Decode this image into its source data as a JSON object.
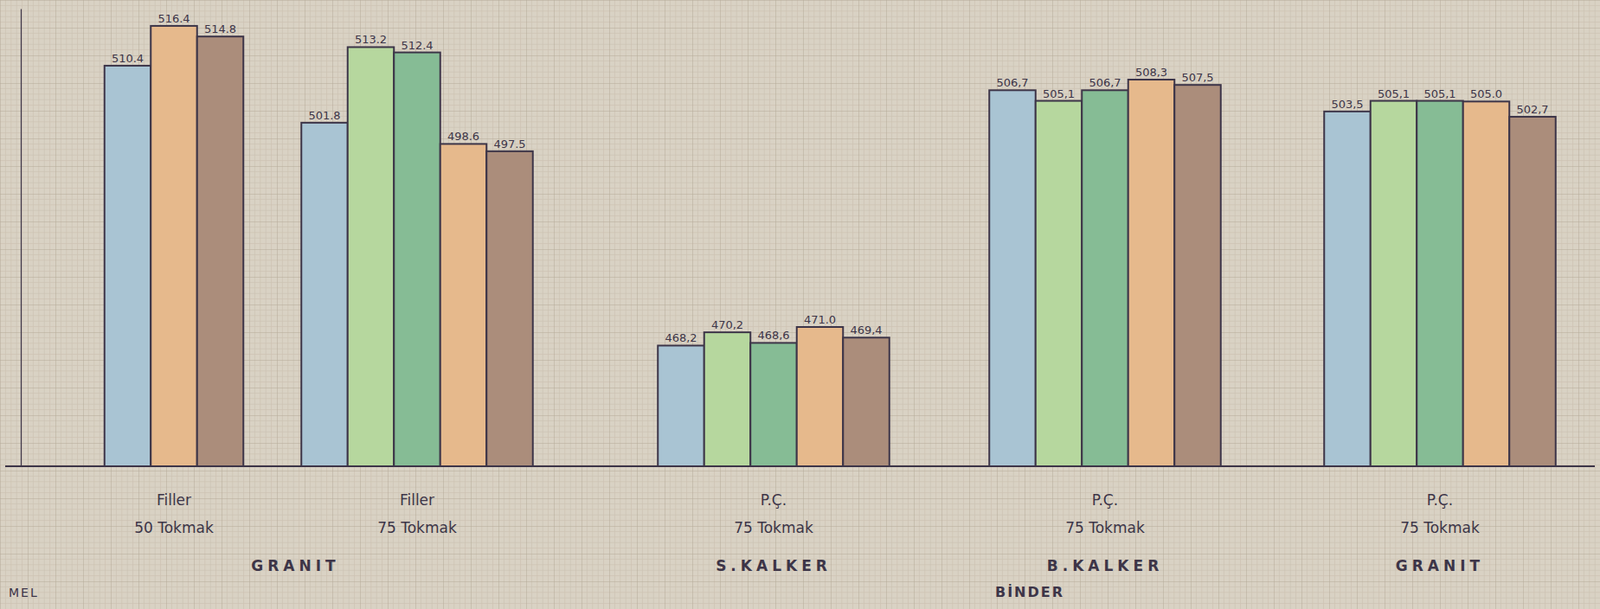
{
  "chart_data": {
    "type": "bar",
    "categories": [
      "Filler 50 Tokmak",
      "Filler 75 Tokmak",
      "P.Ç. 75 Tokmak",
      "P.Ç. 75 Tokmak",
      "P.Ç. 75 Tokmak"
    ],
    "group_labels": [
      "GRANIT",
      "GRANIT",
      "S.KALKER",
      "B.KALKER",
      "GRANIT"
    ],
    "annotations": [
      "MEL",
      "BİNDER"
    ],
    "ylim": [
      450,
      519
    ],
    "yticks": [],
    "tick_labels": "x",
    "data_labels": true,
    "series": [
      {
        "color": "#a9c4d3",
        "values": [
          510.4,
          501.8,
          468.2,
          506.7,
          503.5
        ],
        "value_labels": [
          "510.4",
          "501.8",
          "468,2",
          "506,7",
          "503,5"
        ]
      },
      {
        "color": "#b6d79e",
        "values": [
          null,
          513.2,
          470.2,
          505.1,
          505.1
        ],
        "value_labels": [
          null,
          "513.2",
          "470,2",
          "505,1",
          "505,1"
        ]
      },
      {
        "color": "#86bc95",
        "values": [
          null,
          512.4,
          468.6,
          506.7,
          505.1
        ],
        "value_labels": [
          null,
          "512.4",
          "468,6",
          "506,7",
          "505,1"
        ]
      },
      {
        "color": "#e6b98c",
        "values": [
          516.4,
          498.6,
          471.0,
          508.3,
          505.0
        ],
        "value_labels": [
          "516.4",
          "498.6",
          "471.0",
          "508,3",
          "505.0"
        ]
      },
      {
        "color": "#ab8d7b",
        "values": [
          514.8,
          497.5,
          469.4,
          507.5,
          502.7
        ],
        "value_labels": [
          "514.8",
          "497.5",
          "469,4",
          "507,5",
          "502,7"
        ]
      }
    ]
  }
}
